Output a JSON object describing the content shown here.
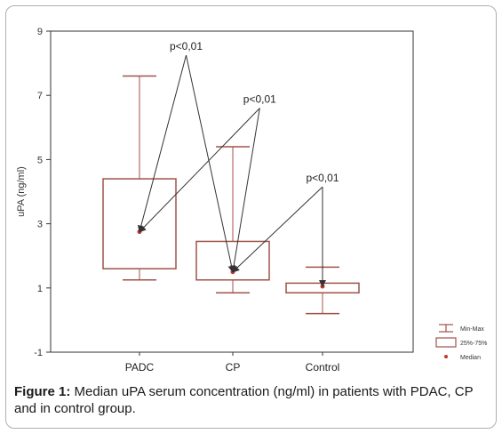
{
  "chart_data": {
    "type": "boxplot",
    "categories": [
      "PADC",
      "CP",
      "Control"
    ],
    "ylabel": "uPA (ng/ml)",
    "xlabel": "",
    "ylim": [
      -1,
      9
    ],
    "yticks": [
      -1,
      1,
      3,
      5,
      7,
      9
    ],
    "grid": false,
    "series": [
      {
        "category": "PADC",
        "min": 1.25,
        "q1": 1.6,
        "median": 2.75,
        "q3": 4.4,
        "max": 7.6
      },
      {
        "category": "CP",
        "min": 0.85,
        "q1": 1.25,
        "median": 1.5,
        "q3": 2.45,
        "max": 5.4
      },
      {
        "category": "Control",
        "min": 0.2,
        "q1": 0.85,
        "median": 1.05,
        "q3": 1.15,
        "max": 1.65
      }
    ],
    "annotations": [
      {
        "label": "p<0,01",
        "peak_category": 0.5,
        "peak_value": 8.25,
        "from": "PADC",
        "to": "CP"
      },
      {
        "label": "p<0,01",
        "peak_category": 1.3,
        "peak_value": 6.6,
        "from": "CP",
        "to": "PADC"
      },
      {
        "label": "p<0,01",
        "peak_category": 2.0,
        "peak_value": 4.15,
        "from": "CP",
        "to": "Control"
      }
    ],
    "legend": {
      "position": "bottom-right",
      "items": [
        "Min-Max",
        "25%-75%",
        "Median"
      ]
    },
    "colors": {
      "box": "#a0524a",
      "median": "#c0392b",
      "arrow": "#333333",
      "axis": "#333333"
    }
  },
  "caption": {
    "label": "Figure 1:",
    "text": " Median uPA serum concentration (ng/ml) in patients with PDAC, CP and in control group."
  }
}
